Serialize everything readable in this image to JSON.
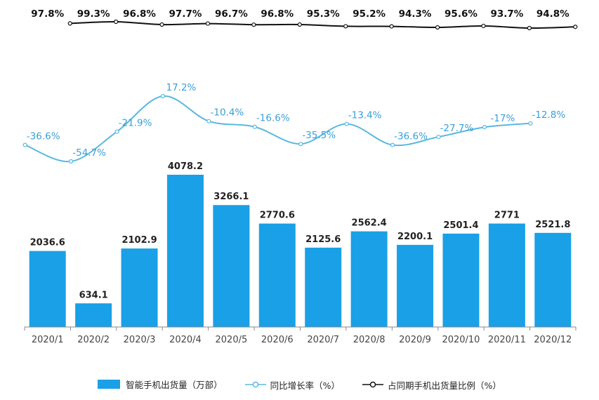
{
  "chart_data": {
    "type": "bar+line",
    "categories": [
      "2020/1",
      "2020/2",
      "2020/3",
      "2020/4",
      "2020/5",
      "2020/6",
      "2020/7",
      "2020/8",
      "2020/9",
      "2020/10",
      "2020/11",
      "2020/12"
    ],
    "series": [
      {
        "name": "智能手机出货量（万部）",
        "kind": "bar",
        "values": [
          2036.6,
          634.1,
          2102.9,
          4078.2,
          3266.1,
          2770.6,
          2125.6,
          2562.4,
          2200.1,
          2501.4,
          2771,
          2521.8
        ],
        "labels": [
          "2036.6",
          "634.1",
          "2102.9",
          "4078.2",
          "3266.1",
          "2770.6",
          "2125.6",
          "2562.4",
          "2200.1",
          "2501.4",
          "2771",
          "2521.8"
        ]
      },
      {
        "name": "同比增长率（%）",
        "kind": "line",
        "values": [
          -36.6,
          -54.7,
          -21.9,
          17.2,
          -10.4,
          -16.6,
          -35.5,
          -13.4,
          -36.6,
          -27.7,
          -17,
          -12.8
        ],
        "labels": [
          "-36.6%",
          "-54.7%",
          "-21.9%",
          "17.2%",
          "-10.4%",
          "-16.6%",
          "-35.5%",
          "-13.4%",
          "-36.6%",
          "-27.7%",
          "-17%",
          "-12.8%"
        ]
      },
      {
        "name": "占同期手机出货量比例（%）",
        "kind": "line",
        "values": [
          97.8,
          99.3,
          96.8,
          97.7,
          96.7,
          96.8,
          95.3,
          95.2,
          94.3,
          95.6,
          93.7,
          94.8
        ],
        "labels": [
          "97.8%",
          "99.3%",
          "96.8%",
          "97.7%",
          "96.7%",
          "96.8%",
          "95.3%",
          "95.2%",
          "94.3%",
          "95.6%",
          "93.7%",
          "94.8%"
        ]
      }
    ],
    "ylim": [
      0,
      4300
    ],
    "legend_position": "bottom",
    "colors": {
      "bar": "#1aa0e6",
      "growth": "#5ab8e0",
      "growth_label": "#3aa0d6",
      "share": "#111111",
      "axis": "#888888"
    }
  }
}
